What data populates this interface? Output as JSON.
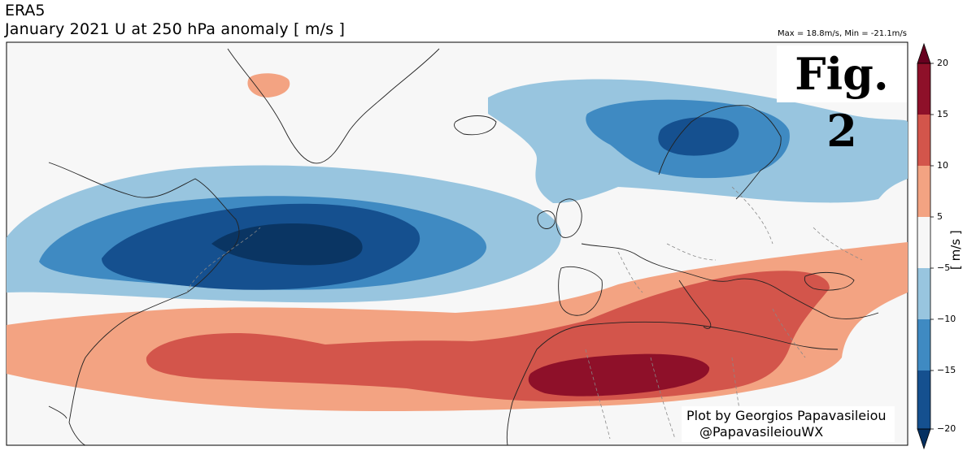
{
  "header": {
    "dataset": "ERA5",
    "title": "January 2021 U at 250 hPa anomaly [ m/s ]",
    "maxmin": "Max = 18.8m/s, Min = -21.1m/s"
  },
  "figure_label": "Fig. 2",
  "credit": {
    "line1": "Plot by Georgios Papavasileiou",
    "line2": "@PapavasileiouWX"
  },
  "colorbar": {
    "label": "[ m/s ]",
    "ticks": [
      "20",
      "15",
      "10",
      "5",
      "−5",
      "−10",
      "−15",
      "−20"
    ],
    "bands": [
      {
        "range": "15 to 20",
        "color": "#8e1029"
      },
      {
        "range": "10 to 15",
        "color": "#d3554b"
      },
      {
        "range": "5 to 10",
        "color": "#f3a382"
      },
      {
        "range": "-5 to 5",
        "color": "#f7f7f7"
      },
      {
        "range": "-10 to -5",
        "color": "#98c5df"
      },
      {
        "range": "-15 to -10",
        "color": "#3f8ac2"
      },
      {
        "range": "-20 to -15",
        "color": "#15508f"
      }
    ],
    "extend_max_color": "#67001f",
    "extend_min_color": "#053061",
    "extra_dark": "#0a3563"
  },
  "map": {
    "variable": "U wind anomaly 250 hPa",
    "region": "North Atlantic and Europe",
    "ocean_color": "#f7f7f7"
  }
}
